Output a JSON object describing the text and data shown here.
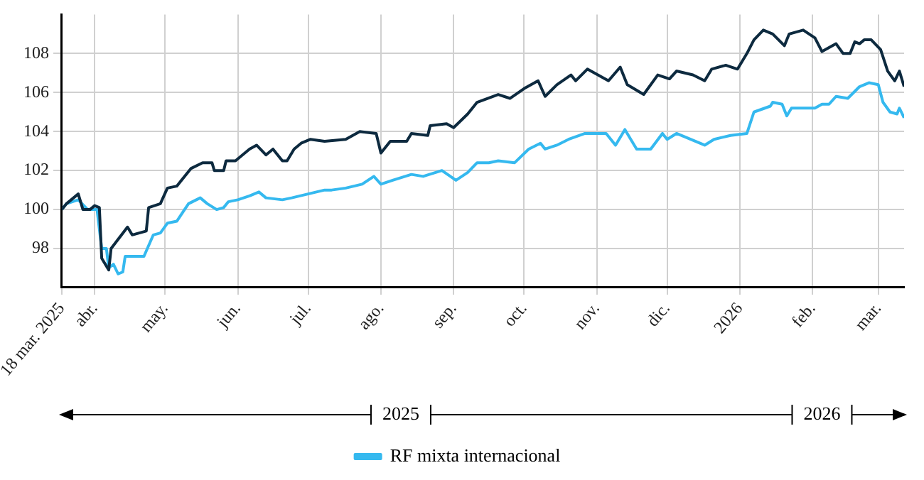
{
  "chart_data": {
    "type": "line",
    "xlim": [
      "2025-03-18",
      "2026-03-12"
    ],
    "xticks": [
      {
        "value": "2025-03-18",
        "label": "18 mar. 2025"
      },
      {
        "value": "2025-04-01",
        "label": "abr."
      },
      {
        "value": "2025-05-01",
        "label": "may."
      },
      {
        "value": "2025-06-01",
        "label": "jun."
      },
      {
        "value": "2025-07-01",
        "label": "jul."
      },
      {
        "value": "2025-08-01",
        "label": "ago."
      },
      {
        "value": "2025-09-01",
        "label": "sep."
      },
      {
        "value": "2025-10-01",
        "label": "oct."
      },
      {
        "value": "2025-11-01",
        "label": "nov."
      },
      {
        "value": "2025-12-01",
        "label": "dic."
      },
      {
        "value": "2026-01-01",
        "label": "2026"
      },
      {
        "value": "2026-02-01",
        "label": "feb."
      },
      {
        "value": "2026-03-01",
        "label": "mar."
      }
    ],
    "ylim": [
      96,
      110
    ],
    "yticks": [
      98,
      100,
      102,
      104,
      106,
      108
    ],
    "grid": true,
    "legend": "bottom",
    "marker": "none",
    "line_style": "solid",
    "annotations": [
      "2025",
      "2026"
    ],
    "series": [
      {
        "color": "#0d2a3f",
        "x": [
          "2025-03-18",
          "2025-03-20",
          "2025-03-25",
          "2025-03-27",
          "2025-03-30",
          "2025-04-01",
          "2025-04-03",
          "2025-04-04",
          "2025-04-07",
          "2025-04-08",
          "2025-04-15",
          "2025-04-17",
          "2025-04-23",
          "2025-04-24",
          "2025-04-29",
          "2025-05-02",
          "2025-05-06",
          "2025-05-12",
          "2025-05-17",
          "2025-05-21",
          "2025-05-22",
          "2025-05-26",
          "2025-05-27",
          "2025-05-31",
          "2025-06-06",
          "2025-06-09",
          "2025-06-13",
          "2025-06-16",
          "2025-06-20",
          "2025-06-22",
          "2025-06-25",
          "2025-06-28",
          "2025-07-02",
          "2025-07-08",
          "2025-07-17",
          "2025-07-23",
          "2025-07-30",
          "2025-08-01",
          "2025-08-05",
          "2025-08-12",
          "2025-08-14",
          "2025-08-21",
          "2025-08-22",
          "2025-08-29",
          "2025-09-01",
          "2025-09-07",
          "2025-09-11",
          "2025-09-20",
          "2025-09-25",
          "2025-10-01",
          "2025-10-07",
          "2025-10-10",
          "2025-10-15",
          "2025-10-21",
          "2025-10-23",
          "2025-10-28",
          "2025-11-06",
          "2025-11-11",
          "2025-11-14",
          "2025-11-21",
          "2025-11-27",
          "2025-12-02",
          "2025-12-05",
          "2025-12-12",
          "2025-12-17",
          "2025-12-20",
          "2025-12-26",
          "2025-12-31",
          "2026-01-04",
          "2026-01-07",
          "2026-01-11",
          "2026-01-15",
          "2026-01-20",
          "2026-01-22",
          "2026-01-28",
          "2026-02-02",
          "2026-02-05",
          "2026-02-11",
          "2026-02-14",
          "2026-02-17",
          "2026-02-19",
          "2026-02-21",
          "2026-02-23",
          "2026-02-26",
          "2026-03-02",
          "2026-03-05",
          "2026-03-08",
          "2026-03-10",
          "2026-03-12"
        ],
        "values": [
          100.0,
          100.3,
          100.8,
          100.0,
          100.0,
          100.2,
          100.1,
          97.5,
          96.9,
          98.0,
          99.1,
          98.7,
          98.9,
          100.1,
          100.3,
          101.1,
          101.2,
          102.1,
          102.4,
          102.4,
          102.0,
          102.0,
          102.5,
          102.5,
          103.1,
          103.3,
          102.8,
          103.1,
          102.5,
          102.5,
          103.1,
          103.4,
          103.6,
          103.5,
          103.6,
          104.0,
          103.9,
          102.9,
          103.5,
          103.5,
          103.9,
          103.8,
          104.3,
          104.4,
          104.2,
          104.9,
          105.5,
          105.9,
          105.7,
          106.2,
          106.6,
          105.8,
          106.4,
          106.9,
          106.6,
          107.2,
          106.6,
          107.3,
          106.4,
          105.9,
          106.9,
          106.7,
          107.1,
          106.9,
          106.6,
          107.2,
          107.4,
          107.2,
          108.0,
          108.7,
          109.2,
          109.0,
          108.4,
          109.0,
          109.2,
          108.8,
          108.1,
          108.5,
          108.0,
          108.0,
          108.6,
          108.5,
          108.7,
          108.7,
          108.2,
          107.1,
          106.6,
          107.1,
          106.3
        ]
      },
      {
        "name": "RF mixta internacional",
        "color": "#35b9ef",
        "x": [
          "2025-03-18",
          "2025-03-20",
          "2025-03-25",
          "2025-03-29",
          "2025-04-02",
          "2025-04-04",
          "2025-04-06",
          "2025-04-07",
          "2025-04-09",
          "2025-04-11",
          "2025-04-13",
          "2025-04-14",
          "2025-04-22",
          "2025-04-26",
          "2025-04-29",
          "2025-05-02",
          "2025-05-06",
          "2025-05-11",
          "2025-05-16",
          "2025-05-19",
          "2025-05-23",
          "2025-05-26",
          "2025-05-28",
          "2025-06-01",
          "2025-06-06",
          "2025-06-10",
          "2025-06-13",
          "2025-06-20",
          "2025-06-24",
          "2025-07-01",
          "2025-07-08",
          "2025-07-11",
          "2025-07-17",
          "2025-07-24",
          "2025-07-29",
          "2025-08-01",
          "2025-08-06",
          "2025-08-14",
          "2025-08-19",
          "2025-08-27",
          "2025-09-02",
          "2025-09-07",
          "2025-09-11",
          "2025-09-16",
          "2025-09-20",
          "2025-09-27",
          "2025-10-03",
          "2025-10-08",
          "2025-10-10",
          "2025-10-15",
          "2025-10-20",
          "2025-10-27",
          "2025-11-05",
          "2025-11-09",
          "2025-11-13",
          "2025-11-18",
          "2025-11-24",
          "2025-11-29",
          "2025-12-01",
          "2025-12-05",
          "2025-12-17",
          "2025-12-21",
          "2025-12-28",
          "2026-01-04",
          "2026-01-07",
          "2026-01-14",
          "2026-01-15",
          "2026-01-19",
          "2026-01-21",
          "2026-01-23",
          "2026-02-02",
          "2026-02-05",
          "2026-02-08",
          "2026-02-11",
          "2026-02-16",
          "2026-02-21",
          "2026-02-25",
          "2026-03-01",
          "2026-03-03",
          "2026-03-06",
          "2026-03-09",
          "2026-03-10",
          "2026-03-12"
        ],
        "values": [
          100.0,
          100.3,
          100.5,
          100.0,
          100.0,
          98.0,
          98.0,
          97.0,
          97.2,
          96.7,
          96.8,
          97.6,
          97.6,
          98.7,
          98.8,
          99.3,
          99.4,
          100.3,
          100.6,
          100.3,
          100.0,
          100.1,
          100.4,
          100.5,
          100.7,
          100.9,
          100.6,
          100.5,
          100.6,
          100.8,
          101.0,
          101.0,
          101.1,
          101.3,
          101.7,
          101.3,
          101.5,
          101.8,
          101.7,
          102.0,
          101.5,
          101.9,
          102.4,
          102.4,
          102.5,
          102.4,
          103.1,
          103.4,
          103.1,
          103.3,
          103.6,
          103.9,
          103.9,
          103.3,
          104.1,
          103.1,
          103.1,
          103.9,
          103.6,
          103.9,
          103.3,
          103.6,
          103.8,
          103.9,
          105.0,
          105.3,
          105.5,
          105.4,
          104.8,
          105.2,
          105.2,
          105.4,
          105.4,
          105.8,
          105.7,
          106.3,
          106.5,
          106.4,
          105.5,
          105.0,
          104.9,
          105.2,
          104.7
        ]
      }
    ]
  }
}
